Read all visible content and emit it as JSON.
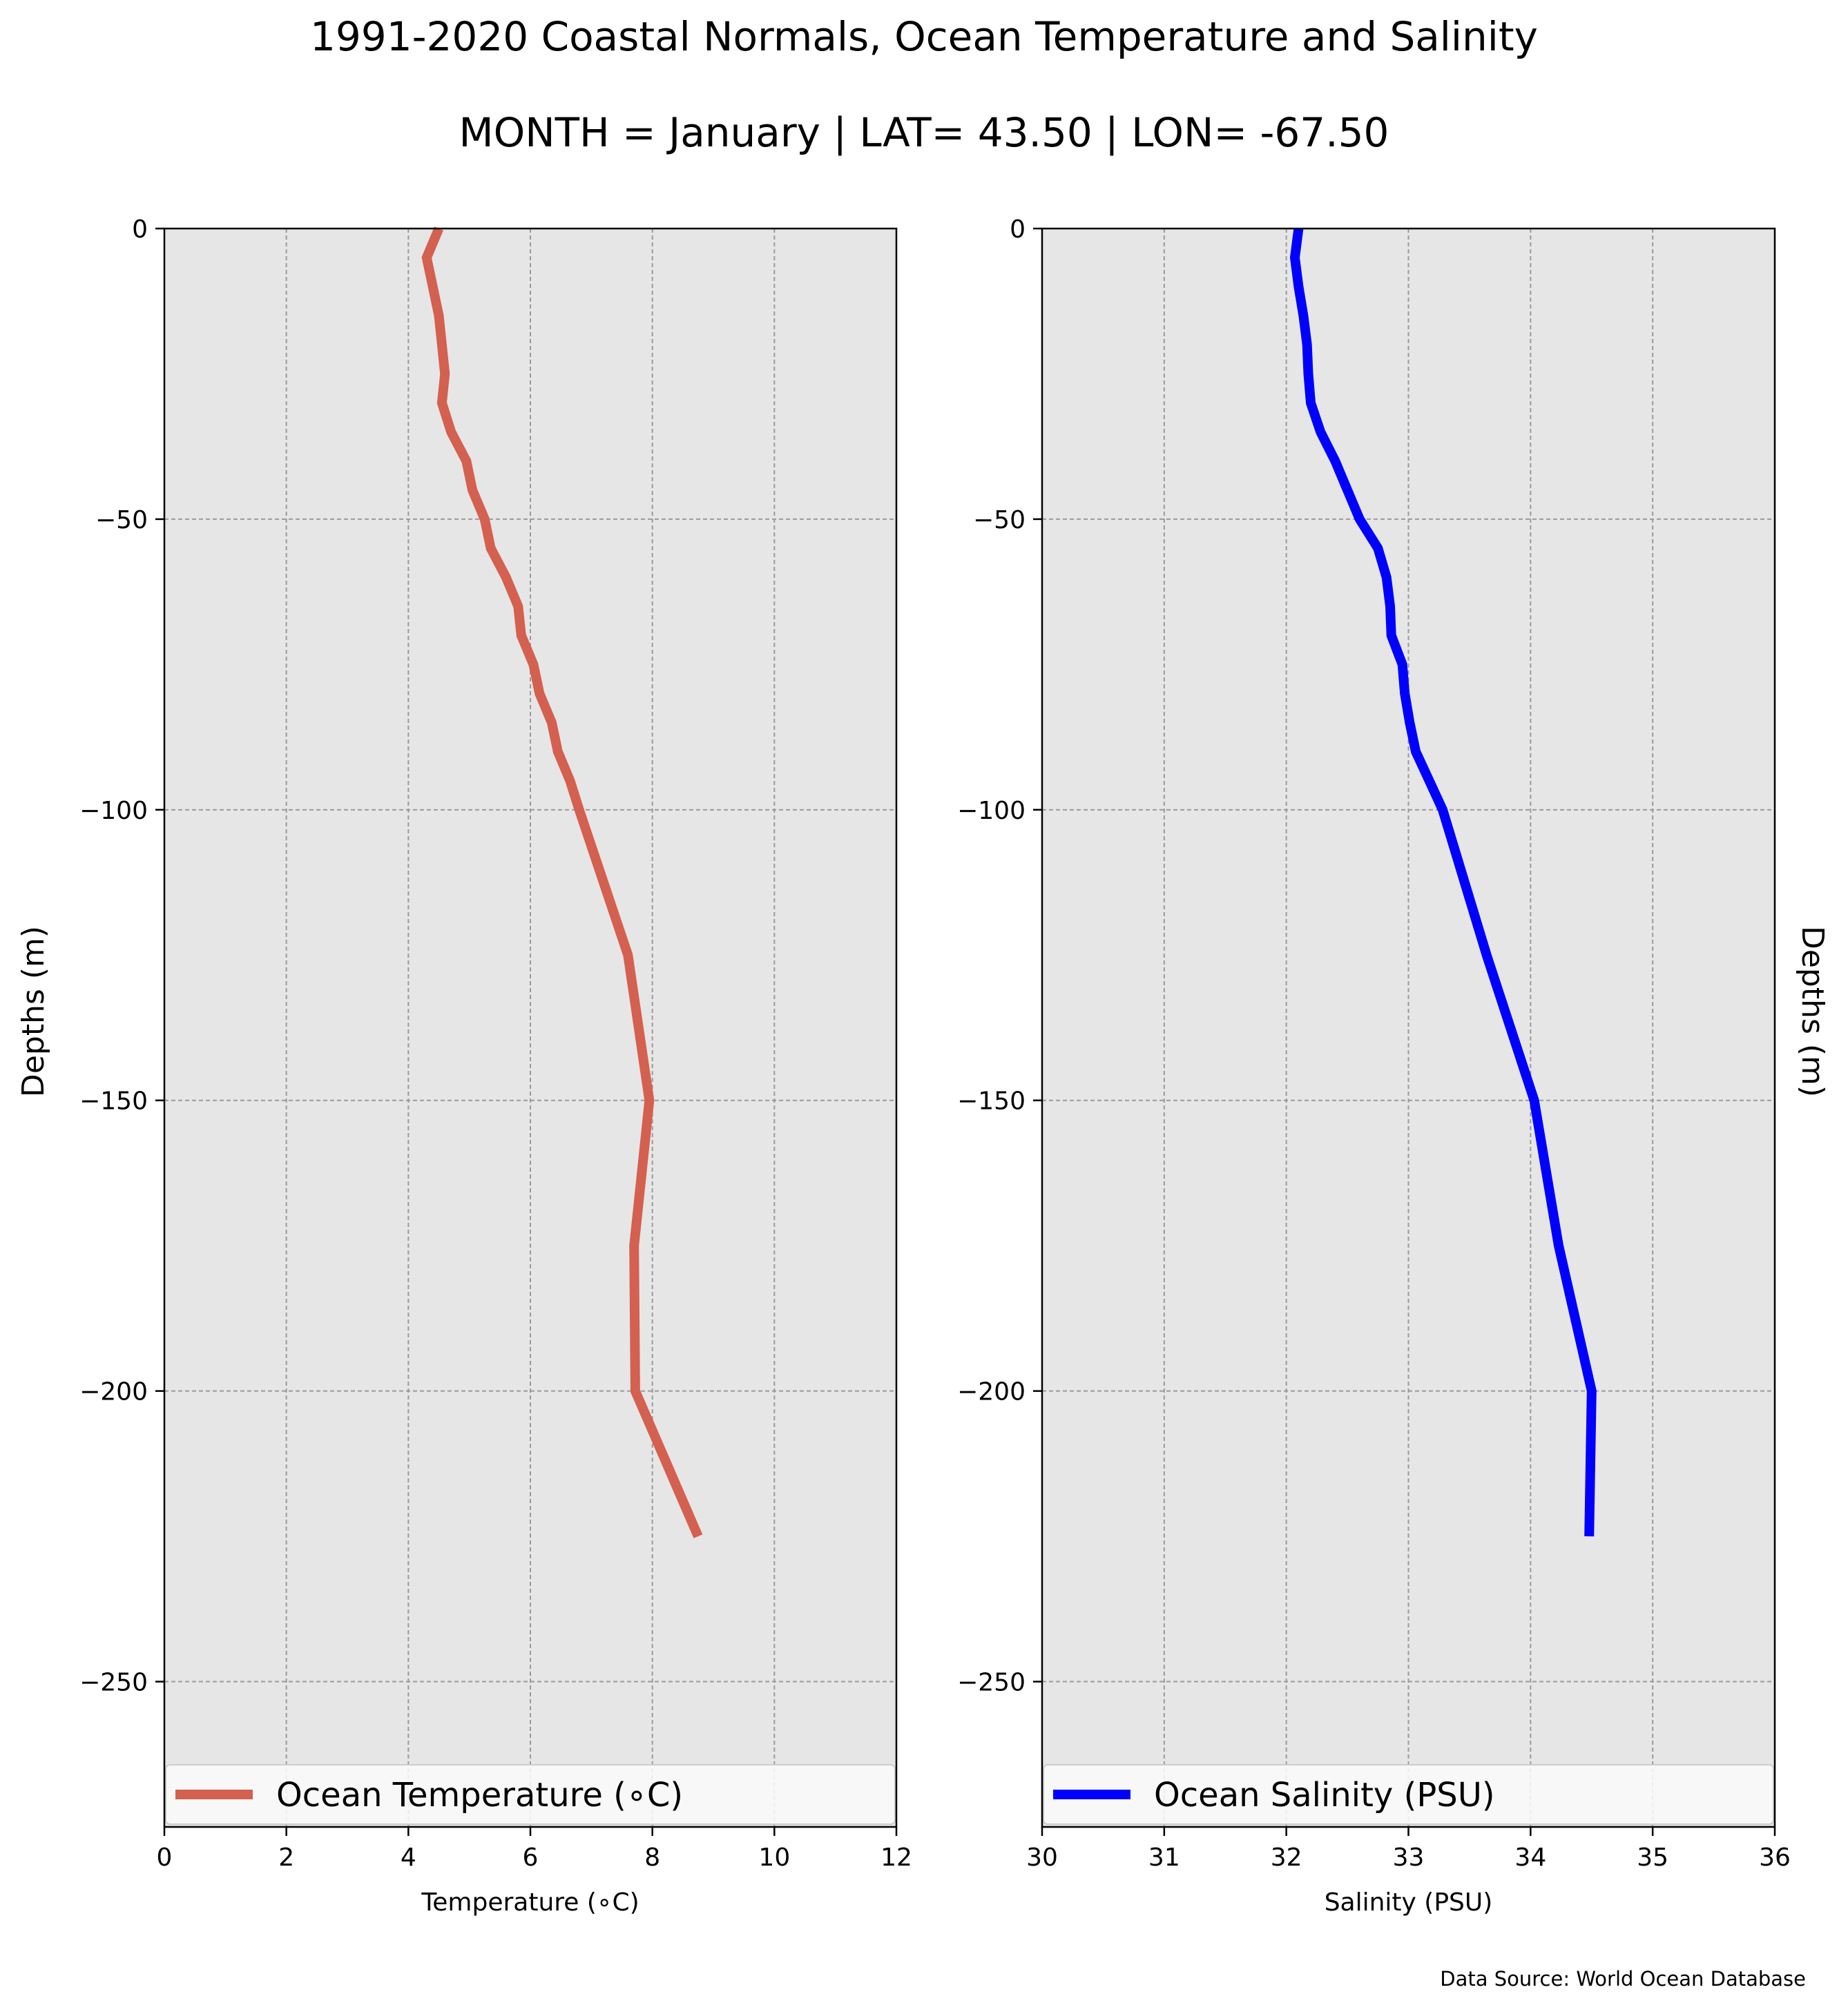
{
  "figure": {
    "title": "1991-2020 Coastal Normals, Ocean Temperature and Salinity",
    "subtitle": "MONTH = January | LAT= 43.50 | LON= -67.50",
    "source": "Data Source: World Ocean Database",
    "background": "#ffffff",
    "axes_facecolor": "#e6e6e6"
  },
  "chart_data": [
    {
      "type": "line",
      "xlabel": "Temperature ($^\\circ$C)",
      "xlabel_display": "Temperature (∘C)",
      "ylabel": "Depths (m)",
      "xlim": [
        0,
        12
      ],
      "ylim": [
        -275,
        0
      ],
      "xticks": [
        0,
        2,
        4,
        6,
        8,
        10,
        12
      ],
      "xtick_labels": [
        "0",
        "2",
        "4",
        "6",
        "8",
        "10",
        "12"
      ],
      "yticks": [
        0,
        -50,
        -100,
        -150,
        -200,
        -250
      ],
      "ytick_labels": [
        "0",
        "−50",
        "−100",
        "−150",
        "−200",
        "−250"
      ],
      "grid": true,
      "legend_position": "lower center",
      "series": [
        {
          "name": "Ocean Temperature ($^\\circ$C)",
          "name_display": "Ocean Temperature (∘C)",
          "color": "#d46050",
          "x": [
            4.5,
            4.3,
            4.4,
            4.5,
            4.55,
            4.6,
            4.55,
            4.7,
            4.95,
            5.05,
            5.25,
            5.35,
            5.6,
            5.8,
            5.85,
            6.05,
            6.15,
            6.35,
            6.45,
            6.65,
            6.8,
            7.6,
            7.95,
            7.7,
            7.72,
            8.75
          ],
          "y": [
            0,
            -5,
            -10,
            -15,
            -20,
            -25,
            -30,
            -35,
            -40,
            -45,
            -50,
            -55,
            -60,
            -65,
            -70,
            -75,
            -80,
            -85,
            -90,
            -95,
            -100,
            -125,
            -150,
            -175,
            -200,
            -225
          ]
        }
      ]
    },
    {
      "type": "line",
      "xlabel": "Salinity (PSU)",
      "ylabel": "Depths (m)",
      "xlim": [
        30,
        36
      ],
      "ylim": [
        -275,
        0
      ],
      "xticks": [
        30,
        31,
        32,
        33,
        34,
        35,
        36
      ],
      "xtick_labels": [
        "30",
        "31",
        "32",
        "33",
        "34",
        "35",
        "36"
      ],
      "yticks": [
        0,
        -50,
        -100,
        -150,
        -200,
        -250
      ],
      "ytick_labels": [
        "0",
        "−50",
        "−100",
        "−150",
        "−200",
        "−250"
      ],
      "grid": true,
      "legend_position": "lower center",
      "series": [
        {
          "name": "Ocean Salinity (PSU)",
          "color": "#0000ff",
          "x": [
            32.1,
            32.07,
            32.1,
            32.14,
            32.17,
            32.18,
            32.2,
            32.28,
            32.4,
            32.5,
            32.6,
            32.75,
            32.82,
            32.85,
            32.86,
            32.95,
            32.97,
            33.01,
            33.06,
            33.17,
            33.28,
            33.64,
            34.03,
            34.23,
            34.5,
            34.48
          ],
          "y": [
            0,
            -5,
            -10,
            -15,
            -20,
            -25,
            -30,
            -35,
            -40,
            -45,
            -50,
            -55,
            -60,
            -65,
            -70,
            -75,
            -80,
            -85,
            -90,
            -95,
            -100,
            -125,
            -150,
            -175,
            -200,
            -225
          ]
        }
      ]
    }
  ]
}
